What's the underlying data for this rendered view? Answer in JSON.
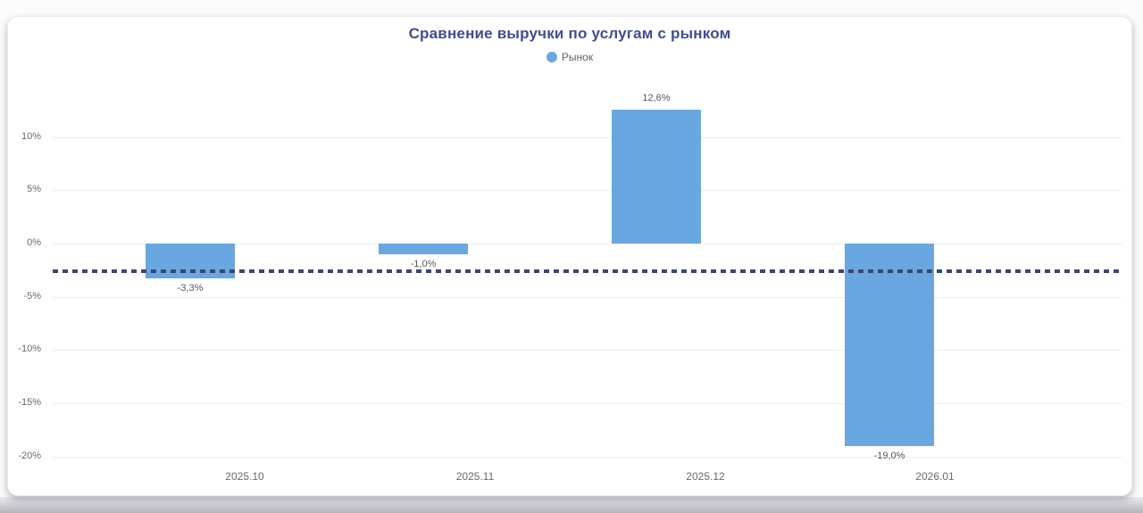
{
  "card": {
    "title": "Сравнение выручки по услугам с рынком"
  },
  "legend": {
    "items": [
      {
        "label": "Рынок",
        "color": "#69a7e0"
      }
    ]
  },
  "chart_data": {
    "type": "bar",
    "title": "Сравнение выручки по услугам с рынком",
    "categories": [
      "2025.10",
      "2025.11",
      "2025.12",
      "2026.01"
    ],
    "series": [
      {
        "name": "Рынок",
        "values": [
          -3.3,
          -1.0,
          12.6,
          -19.0
        ],
        "labels": [
          "-3,3%",
          "-1,0%",
          "12,6%",
          "-19,0%"
        ],
        "color": "#69a7e0"
      }
    ],
    "reference_line": {
      "value": -2.6,
      "style": "dotted",
      "color": "#3a4570"
    },
    "y_ticks": {
      "values": [
        10,
        5,
        0,
        -5,
        -10,
        -15,
        -20
      ],
      "labels": [
        "10%",
        "5%",
        "0%",
        "-5%",
        "-10%",
        "-15%",
        "-20%"
      ]
    },
    "ylim": [
      -21.5,
      14.5
    ],
    "grid": true,
    "legend_position": "top",
    "value_format": "percent-ru"
  },
  "colors": {
    "bar": "#69a7e0",
    "title": "#3f4d93",
    "axis_text": "#6a6a6a",
    "gridline": "#ececec",
    "reference_line": "#3a4570",
    "data_label": "#585858"
  }
}
